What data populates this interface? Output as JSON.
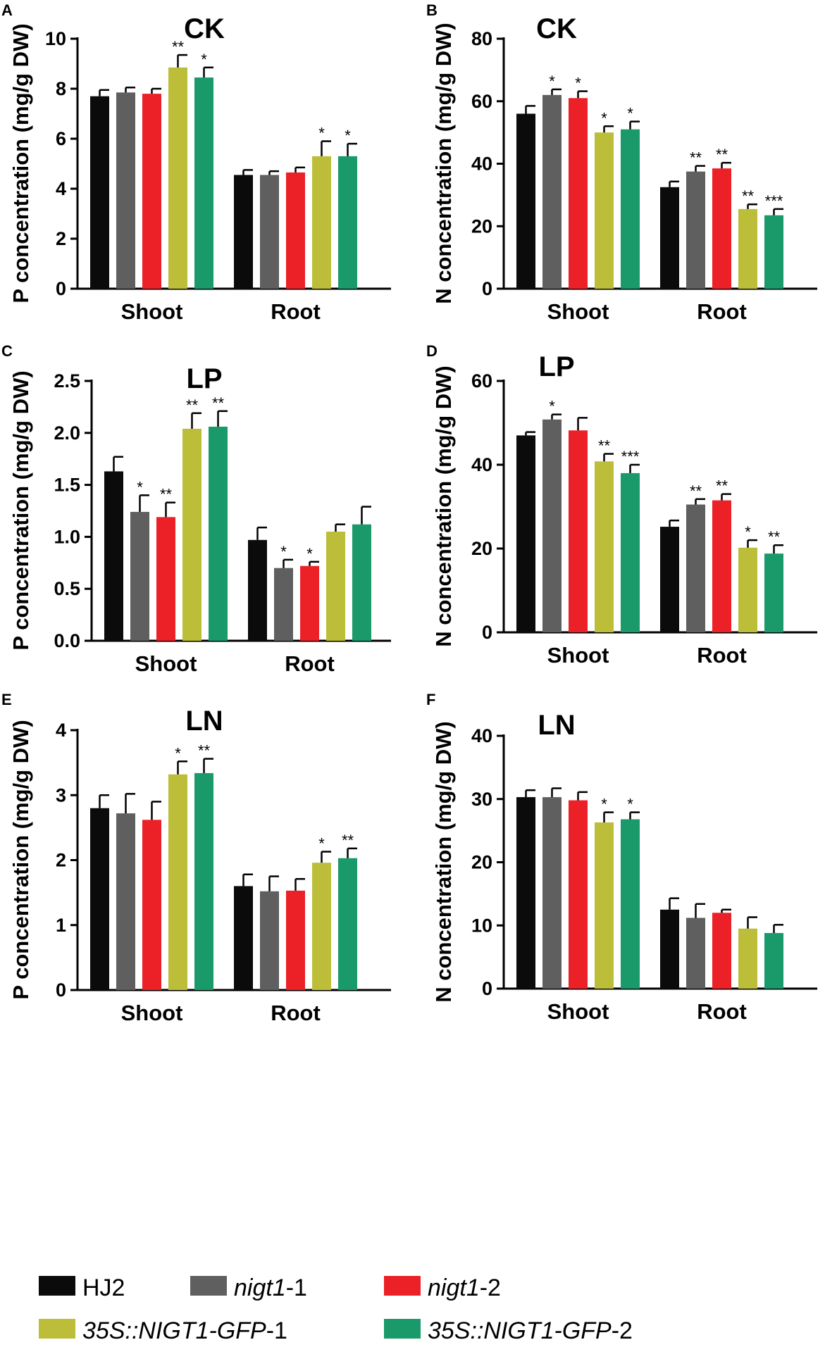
{
  "legend": [
    {
      "name": "HJ2",
      "italic": "",
      "suffix": "",
      "color": "#0b0b0b"
    },
    {
      "name": "",
      "italic": "nigt1",
      "suffix": "-1",
      "color": "#5f5f5f"
    },
    {
      "name": "",
      "italic": "nigt1",
      "suffix": "-2",
      "color": "#ec2127"
    },
    {
      "name": "",
      "italic": "35S::NIGT1-GFP",
      "suffix": "-1",
      "color": "#bcbe3a"
    },
    {
      "name": "",
      "italic": "35S::NIGT1-GFP",
      "suffix": "-2",
      "color": "#1a9a6b"
    }
  ],
  "chart_data": [
    {
      "panel": "A",
      "title": "CK",
      "type": "bar",
      "ylabel": "P concentration (mg/g DW)",
      "ylim": [
        0,
        10
      ],
      "yticks": [
        "0",
        "2",
        "4",
        "6",
        "8",
        "10"
      ],
      "categories": [
        "Shoot",
        "Root"
      ],
      "series": [
        {
          "name": "HJ2",
          "values": [
            7.7,
            4.55
          ],
          "errors": [
            0.25,
            0.2
          ],
          "sig": [
            "",
            ""
          ]
        },
        {
          "name": "nigt1-1",
          "values": [
            7.85,
            4.55
          ],
          "errors": [
            0.2,
            0.15
          ],
          "sig": [
            "",
            ""
          ]
        },
        {
          "name": "nigt1-2",
          "values": [
            7.8,
            4.65
          ],
          "errors": [
            0.2,
            0.2
          ],
          "sig": [
            "",
            ""
          ]
        },
        {
          "name": "35S::NIGT1-GFP-1",
          "values": [
            8.85,
            5.3
          ],
          "errors": [
            0.5,
            0.6
          ],
          "sig": [
            "**",
            "*"
          ]
        },
        {
          "name": "35S::NIGT1-GFP-2",
          "values": [
            8.45,
            5.3
          ],
          "errors": [
            0.4,
            0.5
          ],
          "sig": [
            "*",
            "*"
          ]
        }
      ]
    },
    {
      "panel": "B",
      "title": "CK",
      "type": "bar",
      "ylabel": "N concentration (mg/g DW)",
      "ylim": [
        0,
        80
      ],
      "yticks": [
        "0",
        "20",
        "40",
        "60",
        "80"
      ],
      "categories": [
        "Shoot",
        "Root"
      ],
      "series": [
        {
          "name": "HJ2",
          "values": [
            56,
            32.5
          ],
          "errors": [
            2.5,
            1.8
          ],
          "sig": [
            "",
            ""
          ]
        },
        {
          "name": "nigt1-1",
          "values": [
            62,
            37.5
          ],
          "errors": [
            1.8,
            1.8
          ],
          "sig": [
            "*",
            "**"
          ]
        },
        {
          "name": "nigt1-2",
          "values": [
            61,
            38.5
          ],
          "errors": [
            2.2,
            1.8
          ],
          "sig": [
            "*",
            "**"
          ]
        },
        {
          "name": "35S::NIGT1-GFP-1",
          "values": [
            50,
            25.5
          ],
          "errors": [
            2.0,
            1.5
          ],
          "sig": [
            "*",
            "**"
          ]
        },
        {
          "name": "35S::NIGT1-GFP-2",
          "values": [
            51,
            23.5
          ],
          "errors": [
            2.5,
            2.0
          ],
          "sig": [
            "*",
            "***"
          ]
        }
      ]
    },
    {
      "panel": "C",
      "title": "LP",
      "type": "bar",
      "ylabel": "P concentration (mg/g DW)",
      "ylim": [
        0,
        2.5
      ],
      "yticks": [
        "0.0",
        "0.5",
        "1.0",
        "1.5",
        "2.0",
        "2.5"
      ],
      "categories": [
        "Shoot",
        "Root"
      ],
      "series": [
        {
          "name": "HJ2",
          "values": [
            1.63,
            0.97
          ],
          "errors": [
            0.14,
            0.12
          ],
          "sig": [
            "",
            ""
          ]
        },
        {
          "name": "nigt1-1",
          "values": [
            1.24,
            0.7
          ],
          "errors": [
            0.16,
            0.08
          ],
          "sig": [
            "*",
            "*"
          ]
        },
        {
          "name": "nigt1-2",
          "values": [
            1.19,
            0.72
          ],
          "errors": [
            0.14,
            0.04
          ],
          "sig": [
            "**",
            "*"
          ]
        },
        {
          "name": "35S::NIGT1-GFP-1",
          "values": [
            2.04,
            1.05
          ],
          "errors": [
            0.15,
            0.07
          ],
          "sig": [
            "**",
            ""
          ]
        },
        {
          "name": "35S::NIGT1-GFP-2",
          "values": [
            2.06,
            1.12
          ],
          "errors": [
            0.15,
            0.17
          ],
          "sig": [
            "**",
            ""
          ]
        }
      ]
    },
    {
      "panel": "D",
      "title": "LP",
      "type": "bar",
      "ylabel": "N concentration (mg/g DW)",
      "ylim": [
        0,
        60
      ],
      "yticks": [
        "0",
        "20",
        "40",
        "60"
      ],
      "categories": [
        "Shoot",
        "Root"
      ],
      "series": [
        {
          "name": "HJ2",
          "values": [
            47,
            25.2
          ],
          "errors": [
            0.8,
            1.5
          ],
          "sig": [
            "",
            ""
          ]
        },
        {
          "name": "nigt1-1",
          "values": [
            50.8,
            30.5
          ],
          "errors": [
            1.2,
            1.3
          ],
          "sig": [
            "*",
            "**"
          ]
        },
        {
          "name": "nigt1-2",
          "values": [
            48.2,
            31.5
          ],
          "errors": [
            3.0,
            1.5
          ],
          "sig": [
            "",
            "**"
          ]
        },
        {
          "name": "35S::NIGT1-GFP-1",
          "values": [
            40.8,
            20.2
          ],
          "errors": [
            1.8,
            1.8
          ],
          "sig": [
            "**",
            "*"
          ]
        },
        {
          "name": "35S::NIGT1-GFP-2",
          "values": [
            38,
            18.8
          ],
          "errors": [
            2.0,
            2.0
          ],
          "sig": [
            "***",
            "**"
          ]
        }
      ]
    },
    {
      "panel": "E",
      "title": "LN",
      "type": "bar",
      "ylabel": "P concentration (mg/g DW)",
      "ylim": [
        0,
        4
      ],
      "yticks": [
        "0",
        "1",
        "2",
        "3",
        "4"
      ],
      "categories": [
        "Shoot",
        "Root"
      ],
      "series": [
        {
          "name": "HJ2",
          "values": [
            2.8,
            1.6
          ],
          "errors": [
            0.2,
            0.18
          ],
          "sig": [
            "",
            ""
          ]
        },
        {
          "name": "nigt1-1",
          "values": [
            2.72,
            1.52
          ],
          "errors": [
            0.3,
            0.23
          ],
          "sig": [
            "",
            ""
          ]
        },
        {
          "name": "nigt1-2",
          "values": [
            2.62,
            1.53
          ],
          "errors": [
            0.28,
            0.18
          ],
          "sig": [
            "",
            ""
          ]
        },
        {
          "name": "35S::NIGT1-GFP-1",
          "values": [
            3.32,
            1.96
          ],
          "errors": [
            0.2,
            0.17
          ],
          "sig": [
            "*",
            "*"
          ]
        },
        {
          "name": "35S::NIGT1-GFP-2",
          "values": [
            3.34,
            2.03
          ],
          "errors": [
            0.22,
            0.15
          ],
          "sig": [
            "**",
            "**"
          ]
        }
      ]
    },
    {
      "panel": "F",
      "title": "LN",
      "type": "bar",
      "ylabel": "N concentration (mg/g DW)",
      "ylim": [
        0,
        40
      ],
      "yticks": [
        "0",
        "10",
        "20",
        "30",
        "40"
      ],
      "categories": [
        "Shoot",
        "Root"
      ],
      "series": [
        {
          "name": "HJ2",
          "values": [
            30.3,
            12.5
          ],
          "errors": [
            1.1,
            1.8
          ],
          "sig": [
            "",
            ""
          ]
        },
        {
          "name": "nigt1-1",
          "values": [
            30.3,
            11.2
          ],
          "errors": [
            1.4,
            2.2
          ],
          "sig": [
            "",
            ""
          ]
        },
        {
          "name": "nigt1-2",
          "values": [
            29.8,
            12
          ],
          "errors": [
            1.3,
            0.5
          ],
          "sig": [
            "",
            ""
          ]
        },
        {
          "name": "35S::NIGT1-GFP-1",
          "values": [
            26.3,
            9.5
          ],
          "errors": [
            1.6,
            1.8
          ],
          "sig": [
            "*",
            ""
          ]
        },
        {
          "name": "35S::NIGT1-GFP-2",
          "values": [
            26.8,
            8.8
          ],
          "errors": [
            1.1,
            1.3
          ],
          "sig": [
            "*",
            ""
          ]
        }
      ]
    }
  ]
}
